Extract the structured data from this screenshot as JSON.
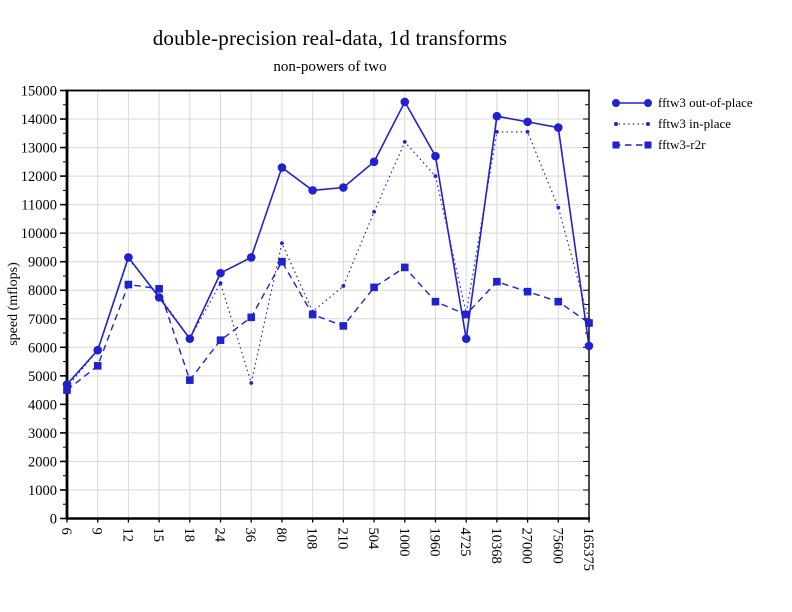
{
  "title": "double-precision real-data, 1d transforms",
  "subtitle": "non-powers of two",
  "chart_data": {
    "type": "line",
    "title": "double-precision real-data, 1d transforms",
    "subtitle": "non-powers of two",
    "xlabel": "",
    "ylabel": "speed (mflops)",
    "ylim": [
      0,
      15000
    ],
    "ytick_step": 1000,
    "ytick_minor_step": 500,
    "grid": true,
    "legend_position": "top-right",
    "categories": [
      "6",
      "9",
      "12",
      "15",
      "18",
      "24",
      "36",
      "80",
      "108",
      "210",
      "504",
      "1000",
      "1960",
      "4725",
      "10368",
      "27000",
      "75600",
      "165375"
    ],
    "series": [
      {
        "name": "fftw3 out-of-place",
        "marker": "circle",
        "line": "solid",
        "values": [
          4700,
          5900,
          9150,
          7750,
          6300,
          8600,
          9150,
          12300,
          11500,
          11600,
          12500,
          14600,
          12700,
          6300,
          14100,
          13900,
          13700,
          6050
        ]
      },
      {
        "name": "fftw3 in-place",
        "marker": "dot",
        "line": "dotted",
        "values": [
          4600,
          5900,
          9100,
          7800,
          6300,
          8250,
          4750,
          9650,
          7250,
          8150,
          10750,
          13200,
          12000,
          7200,
          13550,
          13550,
          10900,
          6950
        ]
      },
      {
        "name": "fftw3-r2r",
        "marker": "square",
        "line": "dashed",
        "values": [
          4500,
          5350,
          8200,
          8050,
          4850,
          6250,
          7050,
          9000,
          7150,
          6750,
          8100,
          8800,
          7600,
          7150,
          8300,
          7950,
          7600,
          6850
        ]
      }
    ],
    "colors": {
      "series": "#2121cd",
      "grid": "#d8d8d8",
      "axis": "#000000"
    }
  }
}
